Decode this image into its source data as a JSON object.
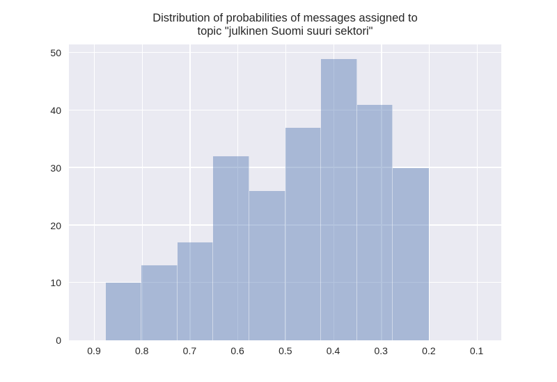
{
  "chart_data": {
    "type": "bar",
    "subtype": "histogram",
    "title": "Distribution of probabilities of messages assigned to topic \"julkinen Suomi suuri sektori\"",
    "title_line1": "Distribution of probabilities of messages assigned to",
    "title_line2": "topic \"julkinen Suomi suuri sektori\"",
    "xlabel": "",
    "ylabel": "",
    "x_axis_reversed": true,
    "xlim": [
      0.9524,
      0.0485
    ],
    "ylim": [
      0,
      51.5
    ],
    "x_ticks": [
      "0.9",
      "0.8",
      "0.7",
      "0.6",
      "0.5",
      "0.4",
      "0.3",
      "0.2",
      "0.1"
    ],
    "y_ticks": [
      "0",
      "10",
      "20",
      "30",
      "40",
      "50"
    ],
    "bin_edges": [
      0.8757,
      0.8006,
      0.7255,
      0.6504,
      0.5753,
      0.5002,
      0.4251,
      0.3501,
      0.275,
      0.1999
    ],
    "counts": [
      10,
      13,
      17,
      32,
      26,
      37,
      49,
      41,
      30
    ],
    "grid": true,
    "legend_position": "none",
    "colors": {
      "bar_fill_base": "#4C72B0",
      "bar_fill_alpha": 0.42,
      "bar_fill_effective": "#A8B8D6",
      "plot_background": "#EAEAF2",
      "gridline": "#FFFFFF",
      "figure_background": "#FFFFFF",
      "text": "#262626"
    }
  }
}
